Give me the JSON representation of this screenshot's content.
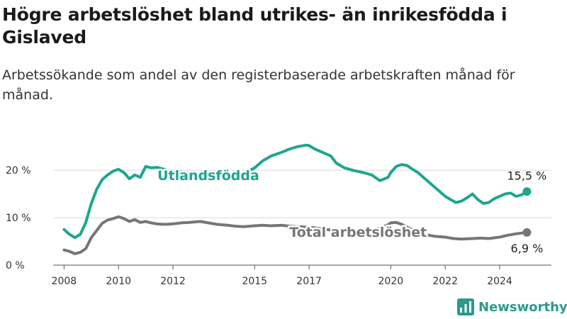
{
  "title": "Högre arbetslöshet bland utrikes- än inrikesfödda i Gislaved",
  "subtitle": "Arbetssökande som andel av den registerbaserade arbetskraften månad för månad.",
  "brand": {
    "name": "Newsworthy",
    "icon": "bar-chart-logo-icon",
    "color": "#2a9a8e"
  },
  "chart_data": {
    "type": "line",
    "x_unit": "year",
    "xlim": [
      2007.6,
      2025.9
    ],
    "ylim": [
      0,
      26
    ],
    "grid": true,
    "x_ticks": [
      {
        "value": 2008,
        "label": "2008"
      },
      {
        "value": 2010,
        "label": "2010"
      },
      {
        "value": 2012,
        "label": "2012"
      },
      {
        "value": 2015,
        "label": "2015"
      },
      {
        "value": 2017,
        "label": "2017"
      },
      {
        "value": 2020,
        "label": "2020"
      },
      {
        "value": 2022,
        "label": "2022"
      },
      {
        "value": 2024,
        "label": "2024"
      }
    ],
    "y_ticks": [
      {
        "value": 0,
        "label": "0 %"
      },
      {
        "value": 10,
        "label": "10 %"
      },
      {
        "value": 20,
        "label": "20 %"
      }
    ],
    "series": [
      {
        "name": "Utlandsfödda",
        "color": "#1fa58f",
        "end_label": "15,5 %",
        "x": [
          2008.0,
          2008.2,
          2008.4,
          2008.6,
          2008.8,
          2009.0,
          2009.2,
          2009.4,
          2009.6,
          2009.8,
          2010.0,
          2010.2,
          2010.4,
          2010.6,
          2010.8,
          2011.0,
          2011.2,
          2011.4,
          2011.6,
          2011.8,
          2012.0,
          2012.5,
          2013.0,
          2013.5,
          2014.0,
          2014.5,
          2015.0,
          2015.3,
          2015.6,
          2016.0,
          2016.3,
          2016.6,
          2016.9,
          2017.0,
          2017.2,
          2017.4,
          2017.6,
          2017.8,
          2018.0,
          2018.3,
          2018.6,
          2019.0,
          2019.3,
          2019.6,
          2019.9,
          2020.0,
          2020.2,
          2020.4,
          2020.6,
          2020.8,
          2021.0,
          2021.2,
          2021.4,
          2021.6,
          2021.8,
          2022.0,
          2022.2,
          2022.4,
          2022.6,
          2022.8,
          2023.0,
          2023.2,
          2023.4,
          2023.6,
          2023.8,
          2024.0,
          2024.2,
          2024.4,
          2024.6,
          2024.8,
          2025.0
        ],
        "y": [
          7.5,
          6.5,
          5.8,
          6.5,
          9.0,
          13.0,
          16.0,
          18.0,
          19.0,
          19.8,
          20.2,
          19.5,
          18.2,
          19.0,
          18.5,
          20.8,
          20.5,
          20.6,
          20.3,
          20.0,
          19.8,
          19.5,
          19.2,
          18.9,
          18.7,
          19.0,
          20.5,
          22.0,
          23.0,
          23.8,
          24.5,
          25.0,
          25.3,
          25.2,
          24.5,
          24.0,
          23.5,
          23.0,
          21.5,
          20.5,
          20.0,
          19.5,
          19.0,
          17.8,
          18.5,
          19.5,
          20.8,
          21.2,
          21.0,
          20.2,
          19.5,
          18.5,
          17.5,
          16.5,
          15.5,
          14.5,
          13.8,
          13.2,
          13.5,
          14.2,
          15.0,
          13.8,
          13.0,
          13.2,
          14.0,
          14.5,
          15.0,
          15.2,
          14.5,
          14.8,
          15.5
        ]
      },
      {
        "name": "Total arbetslöshet",
        "color": "#76767a",
        "end_label": "6,9 %",
        "x": [
          2008.0,
          2008.2,
          2008.4,
          2008.6,
          2008.8,
          2009.0,
          2009.2,
          2009.4,
          2009.6,
          2009.8,
          2010.0,
          2010.2,
          2010.4,
          2010.6,
          2010.8,
          2011.0,
          2011.2,
          2011.4,
          2011.6,
          2011.8,
          2012.0,
          2012.3,
          2012.6,
          2013.0,
          2013.3,
          2013.6,
          2014.0,
          2014.3,
          2014.6,
          2015.0,
          2015.3,
          2015.6,
          2016.0,
          2016.3,
          2016.6,
          2017.0,
          2017.3,
          2017.6,
          2018.0,
          2018.3,
          2018.6,
          2019.0,
          2019.3,
          2019.6,
          2019.9,
          2020.0,
          2020.2,
          2020.4,
          2020.6,
          2020.8,
          2021.0,
          2021.3,
          2021.6,
          2022.0,
          2022.3,
          2022.6,
          2023.0,
          2023.3,
          2023.6,
          2024.0,
          2024.3,
          2024.6,
          2025.0
        ],
        "y": [
          3.2,
          2.9,
          2.4,
          2.7,
          3.5,
          5.8,
          7.3,
          8.8,
          9.5,
          9.8,
          10.2,
          9.8,
          9.2,
          9.6,
          9.0,
          9.2,
          8.9,
          8.7,
          8.6,
          8.6,
          8.7,
          8.9,
          9.0,
          9.2,
          8.9,
          8.6,
          8.4,
          8.2,
          8.1,
          8.3,
          8.4,
          8.3,
          8.4,
          8.2,
          8.1,
          8.0,
          7.8,
          7.5,
          7.3,
          7.1,
          7.0,
          7.0,
          7.3,
          7.8,
          8.5,
          8.9,
          9.0,
          8.6,
          8.0,
          7.4,
          6.9,
          6.4,
          6.1,
          5.9,
          5.6,
          5.5,
          5.6,
          5.7,
          5.6,
          5.9,
          6.3,
          6.6,
          6.9
        ]
      }
    ]
  }
}
